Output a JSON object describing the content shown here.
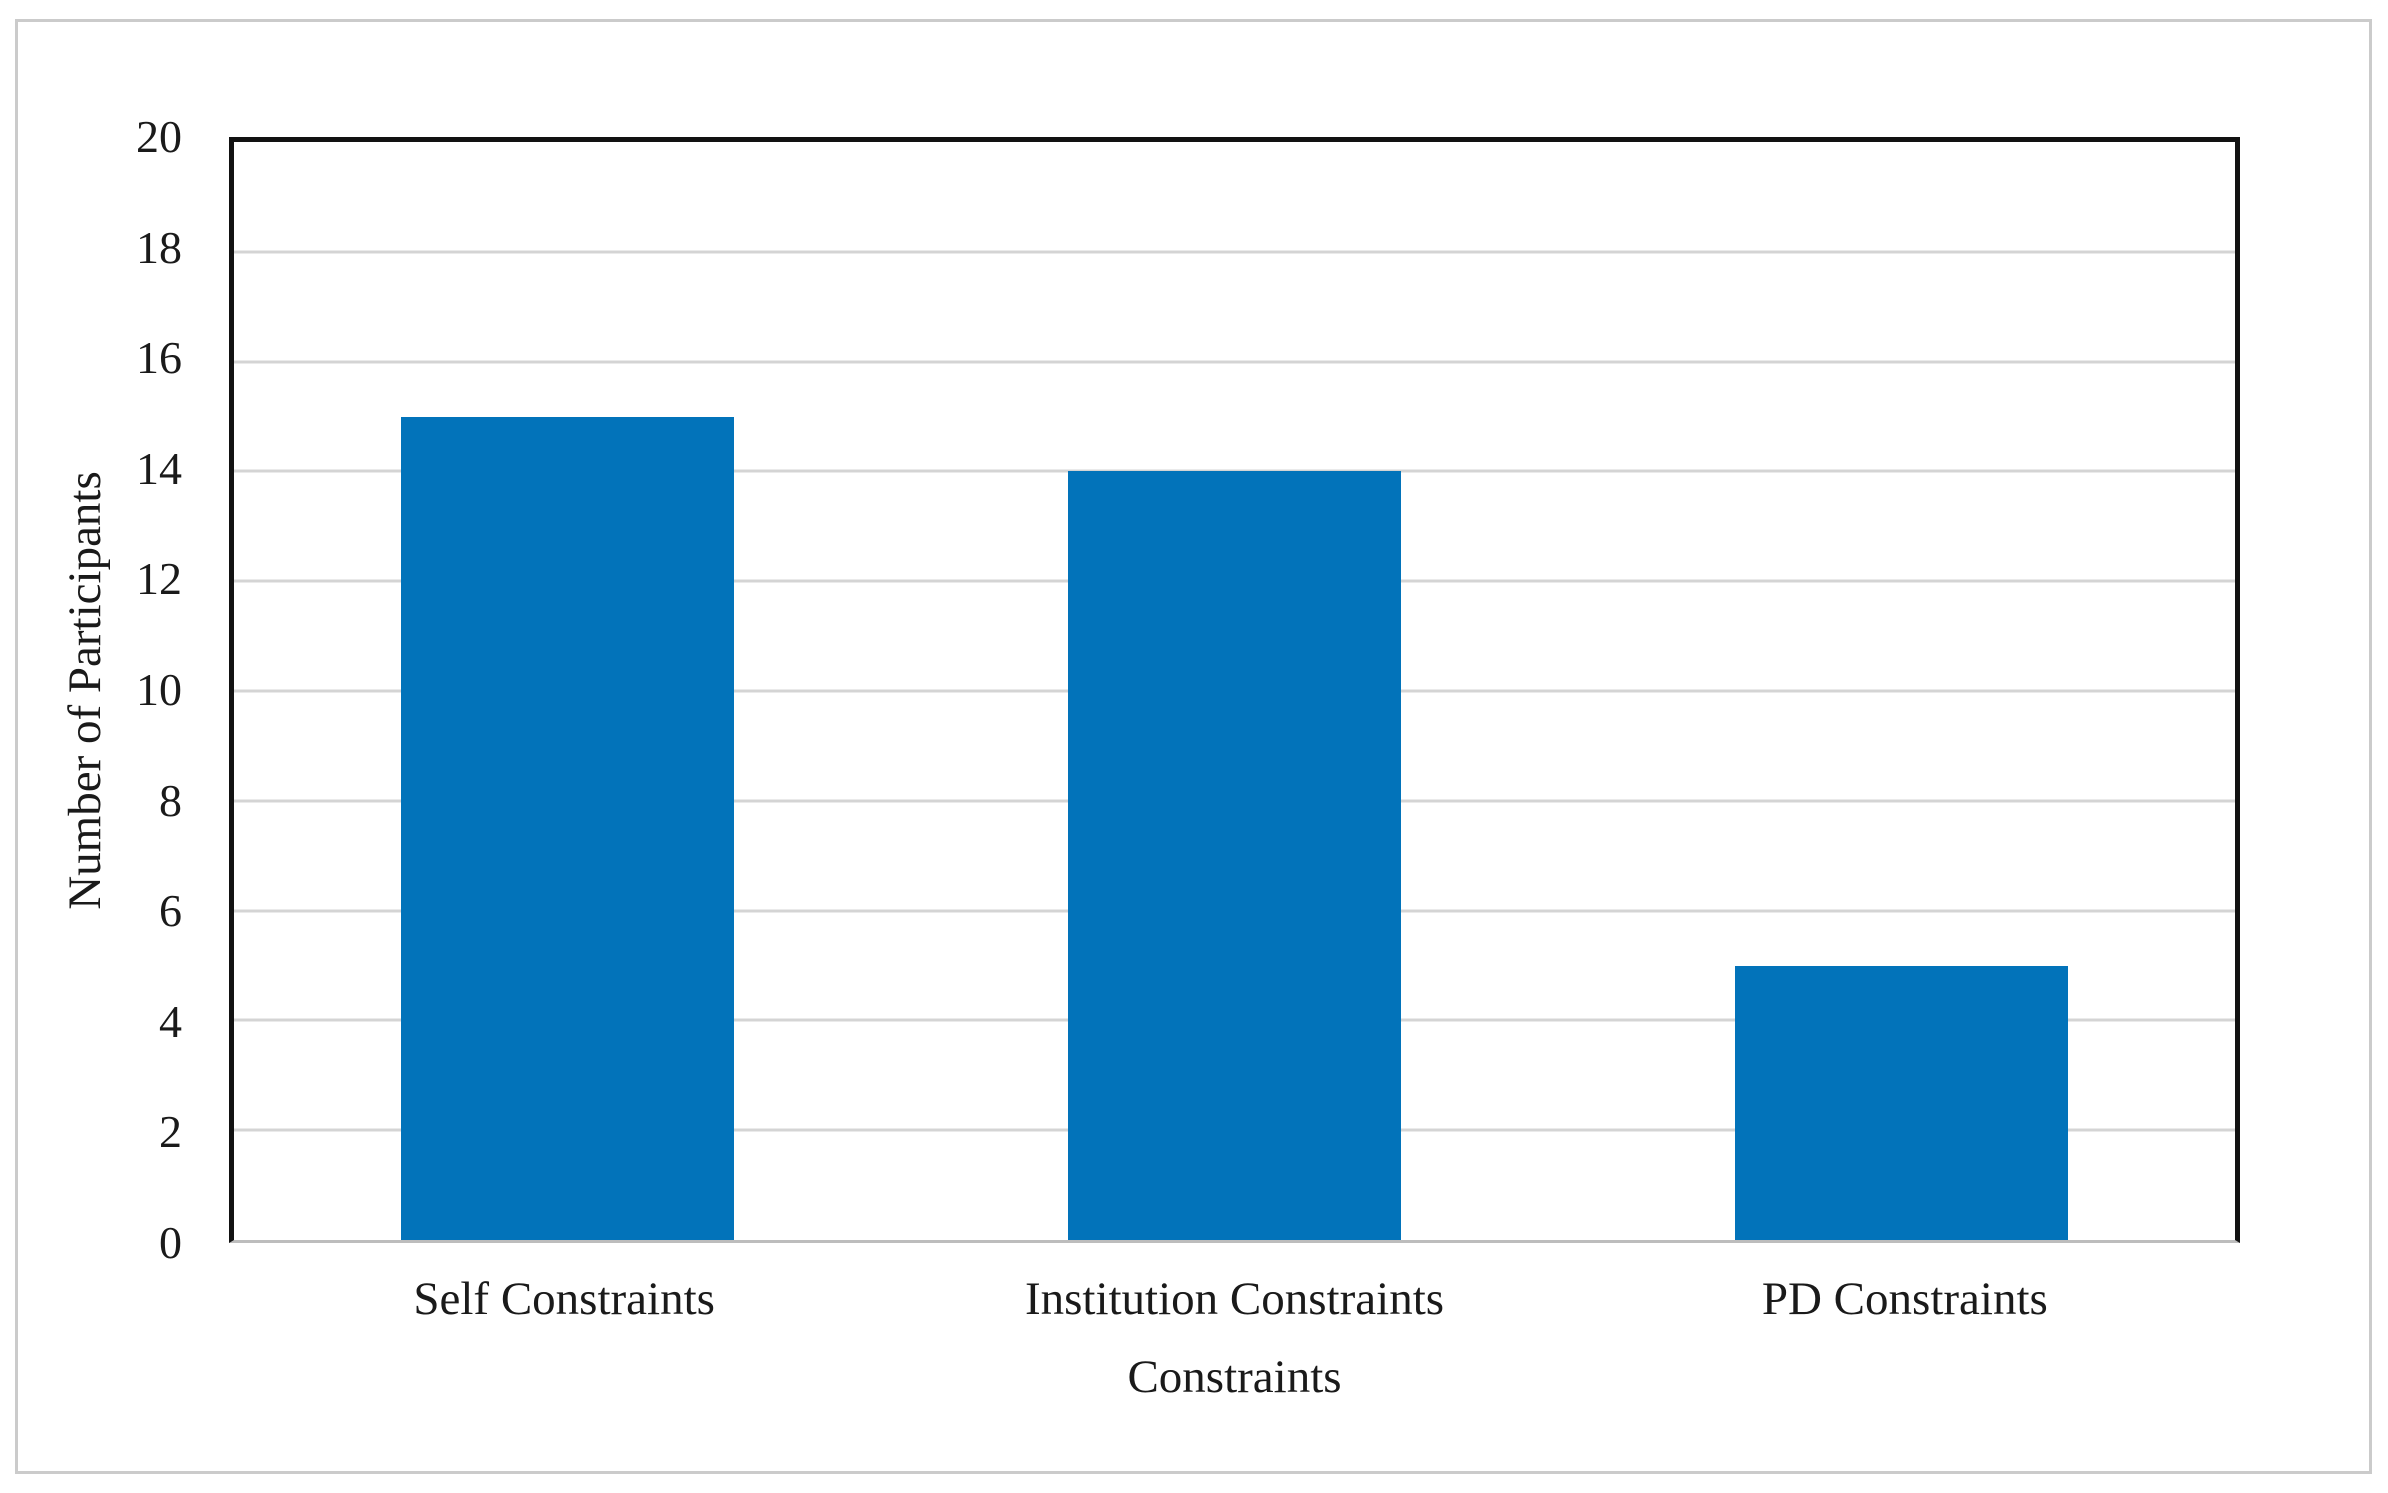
{
  "figure": {
    "background_color": "#ffffff",
    "frame_border_color": "#cbcbcb"
  },
  "chart_data": {
    "type": "bar",
    "title": "",
    "categories": [
      "Self Constraints",
      "Institution Constraints",
      "PD Constraints"
    ],
    "values": [
      15,
      14,
      5
    ],
    "xlabel": "Constraints",
    "ylabel": "Number of Participants",
    "ylim": [
      0,
      20
    ],
    "yticks": [
      0,
      2,
      4,
      6,
      8,
      10,
      12,
      14,
      16,
      18,
      20
    ],
    "grid": "horizontal-on",
    "legend": "none",
    "bar_color": "#0273BA",
    "gridline_color": "#d4d4d4",
    "axis_line_color": "#121212",
    "baseline_color": "#bdbdbd",
    "text_color": "#1a1a1a"
  }
}
